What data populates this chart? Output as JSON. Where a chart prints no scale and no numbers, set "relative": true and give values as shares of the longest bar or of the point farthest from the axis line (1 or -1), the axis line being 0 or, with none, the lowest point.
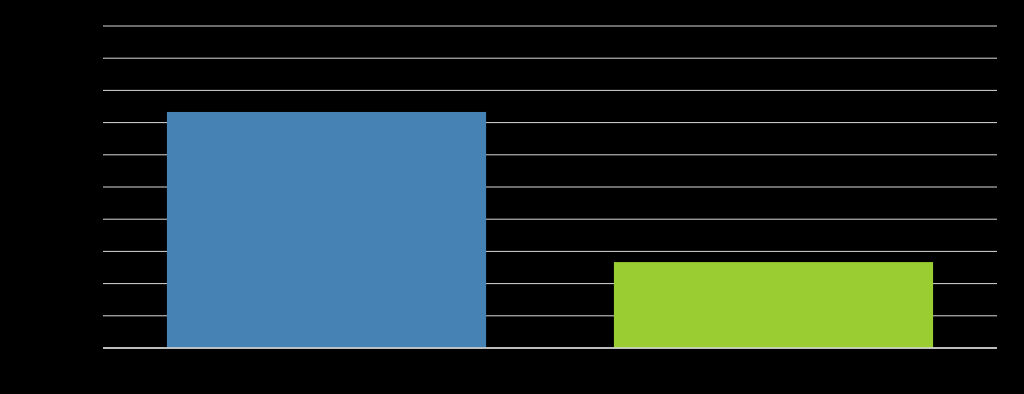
{
  "chart_data": {
    "type": "bar",
    "relative": true,
    "categories": [
      null,
      null
    ],
    "values": [
      1,
      0.364
    ],
    "colors": [
      "#4682b4",
      "#9acd32"
    ],
    "grid": true
  }
}
